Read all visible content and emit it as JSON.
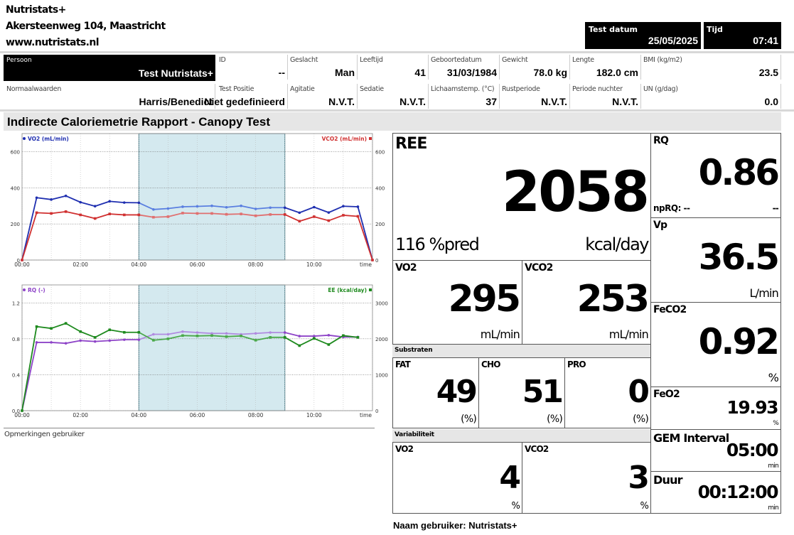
{
  "company": {
    "name": "Nutristats+",
    "address": "Akersteenweg 104, Maastricht",
    "website": "www.nutristats.nl"
  },
  "test_datum": {
    "label": "Test datum",
    "value": "25/05/2025"
  },
  "tijd": {
    "label": "Tijd",
    "value": "07:41"
  },
  "persoon": {
    "label": "Persoon",
    "value": "Test Nutristats+"
  },
  "fields_row1": [
    {
      "label": "ID",
      "value": "--"
    },
    {
      "label": "Geslacht",
      "value": "Man"
    },
    {
      "label": "Leeftijd",
      "value": "41"
    },
    {
      "label": "Geboortedatum",
      "value": "31/03/1984"
    },
    {
      "label": "Gewicht",
      "value": "78.0 kg"
    },
    {
      "label": "Lengte",
      "value": "182.0 cm"
    },
    {
      "label": "BMI (kg/m2)",
      "value": "23.5"
    }
  ],
  "normaalwaarden": {
    "label": "Normaalwaarden",
    "value": "Harris/Benedict"
  },
  "fields_row2": [
    {
      "label": "Test Positie",
      "value": "Niet gedefinieerd"
    },
    {
      "label": "Agitatie",
      "value": "N.V.T."
    },
    {
      "label": "Sedatie",
      "value": "N.V.T."
    },
    {
      "label": "Lichaamstemp. (°C)",
      "value": "37"
    },
    {
      "label": "Rustperiode",
      "value": "N.V.T."
    },
    {
      "label": "Periode nuchter",
      "value": "N.V.T."
    },
    {
      "label": "UN (g/dag)",
      "value": "0.0"
    }
  ],
  "report_title": "Indirecte Caloriemetrie Rapport - Canopy Test",
  "chart_data": [
    {
      "type": "line",
      "x_labels": [
        "00:00",
        "02:00",
        "04:00",
        "06:00",
        "08:00",
        "10:00",
        "time"
      ],
      "left_axis": {
        "label": "VO2 (mL/min)",
        "ticks": [
          "0",
          "200",
          "400",
          "600"
        ],
        "ylim": [
          0,
          700
        ]
      },
      "right_axis": {
        "label": "VCO2 (mL/min)",
        "ticks": [
          "0",
          "200",
          "400",
          "600"
        ],
        "ylim": [
          0,
          700
        ]
      },
      "highlight": [
        4.0,
        9.0
      ],
      "grid": true,
      "series": [
        {
          "name": "VO2 (mL/min)",
          "color": "#1f2fb0",
          "highlight_color": "#5a7fe0",
          "axis": "left",
          "x": [
            0,
            0.5,
            1,
            1.5,
            2,
            2.5,
            3,
            3.5,
            4,
            4.5,
            5,
            5.5,
            6,
            6.5,
            7,
            7.5,
            8,
            8.5,
            9,
            9.5,
            10,
            10.5,
            11,
            11.5,
            12
          ],
          "values": [
            0,
            345,
            335,
            355,
            320,
            298,
            325,
            318,
            317,
            280,
            285,
            295,
            297,
            300,
            292,
            300,
            283,
            290,
            290,
            262,
            293,
            263,
            298,
            295,
            0
          ]
        },
        {
          "name": "VCO2 (mL/min)",
          "color": "#d03030",
          "highlight_color": "#e07070",
          "axis": "right",
          "x": [
            0,
            0.5,
            1,
            1.5,
            2,
            2.5,
            3,
            3.5,
            4,
            4.5,
            5,
            5.5,
            6,
            6.5,
            7,
            7.5,
            8,
            8.5,
            9,
            9.5,
            10,
            10.5,
            11,
            11.5,
            12
          ],
          "values": [
            0,
            262,
            258,
            268,
            250,
            230,
            255,
            250,
            250,
            237,
            240,
            260,
            258,
            258,
            253,
            255,
            245,
            252,
            252,
            215,
            240,
            218,
            248,
            242,
            0
          ]
        }
      ]
    },
    {
      "type": "line",
      "x_labels": [
        "00:00",
        "02:00",
        "04:00",
        "06:00",
        "08:00",
        "10:00",
        "time"
      ],
      "left_axis": {
        "label": "RQ (-)",
        "ticks": [
          "0.0",
          "0.4",
          "0.8",
          "1.2"
        ],
        "ylim": [
          0,
          1.4
        ]
      },
      "right_axis": {
        "label": "EE (kcal/day)",
        "ticks": [
          "0",
          "1000",
          "2000",
          "3000"
        ],
        "ylim": [
          0,
          3500
        ]
      },
      "highlight": [
        4.0,
        9.0
      ],
      "grid": true,
      "series": [
        {
          "name": "RQ (-)",
          "color": "#8e44c8",
          "highlight_color": "#b08ae0",
          "axis": "left",
          "x": [
            0,
            0.5,
            1,
            1.5,
            2,
            2.5,
            3,
            3.5,
            4,
            4.5,
            5,
            5.5,
            6,
            6.5,
            7,
            7.5,
            8,
            8.5,
            9,
            9.5,
            10,
            10.5,
            11,
            11.5,
            12
          ],
          "values": [
            0,
            0.76,
            0.76,
            0.75,
            0.78,
            0.77,
            0.78,
            0.79,
            0.79,
            0.85,
            0.85,
            0.88,
            0.87,
            0.86,
            0.86,
            0.85,
            0.86,
            0.87,
            0.87,
            0.83,
            0.83,
            0.84,
            0.82,
            0.82,
            null
          ]
        },
        {
          "name": "EE (kcal/day)",
          "color": "#1e8a1e",
          "highlight_color": "#4aa84a",
          "axis": "right",
          "x": [
            0,
            0.5,
            1,
            1.5,
            2,
            2.5,
            3,
            3.5,
            4,
            4.5,
            5,
            5.5,
            6,
            6.5,
            7,
            7.5,
            8,
            8.5,
            9,
            9.5,
            10,
            10.5,
            11,
            11.5,
            12
          ],
          "values": [
            0,
            2340,
            2290,
            2430,
            2200,
            2040,
            2250,
            2180,
            2180,
            1960,
            2000,
            2090,
            2080,
            2090,
            2060,
            2080,
            1960,
            2040,
            2040,
            1810,
            2010,
            1840,
            2090,
            2040,
            null
          ]
        }
      ]
    }
  ],
  "opmerkingen_label": "Opmerkingen gebruiker",
  "ree": {
    "label": "REE",
    "value": "2058",
    "pred": "116 %pred",
    "unit": "kcal/day"
  },
  "vo2": {
    "label": "VO2",
    "value": "295",
    "unit": "mL/min"
  },
  "vco2": {
    "label": "VCO2",
    "value": "253",
    "unit": "mL/min"
  },
  "substraten": {
    "label": "Substraten",
    "items": [
      {
        "label": "FAT",
        "value": "49",
        "unit": "(%)"
      },
      {
        "label": "CHO",
        "value": "51",
        "unit": "(%)"
      },
      {
        "label": "PRO",
        "value": "0",
        "unit": "(%)"
      }
    ]
  },
  "variabiliteit": {
    "label": "Variabiliteit",
    "items": [
      {
        "label": "VO2",
        "value": "4",
        "unit": "%"
      },
      {
        "label": "VCO2",
        "value": "3",
        "unit": "%"
      }
    ]
  },
  "rq": {
    "label": "RQ",
    "value": "0.86",
    "np_label": "npRQ: --",
    "np_value": "--"
  },
  "vp": {
    "label": "Vp",
    "value": "36.5",
    "unit": "L/min"
  },
  "feco2": {
    "label": "FeCO2",
    "value": "0.92",
    "unit": "%"
  },
  "feo2": {
    "label": "FeO2",
    "value": "19.93",
    "unit": "%"
  },
  "gem_interval": {
    "label": "GEM Interval",
    "value": "05:00",
    "unit": "min"
  },
  "duur": {
    "label": "Duur",
    "value": "00:12:00",
    "unit": "min"
  },
  "naam_gebruiker": "Naam gebruiker: Nutristats+"
}
